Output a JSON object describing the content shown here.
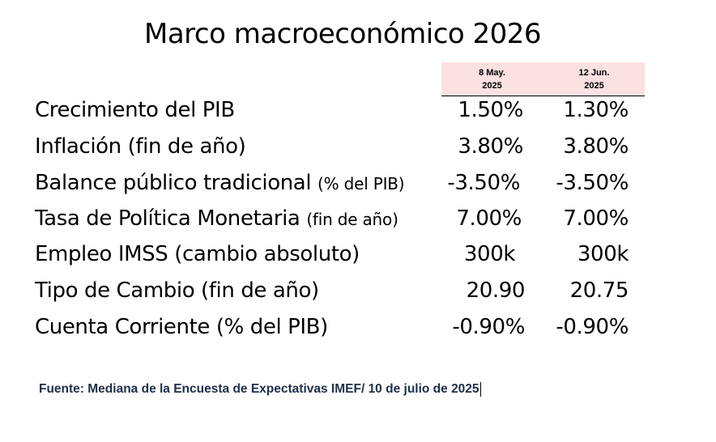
{
  "title": "Marco macroeconómico 2026",
  "columns": [
    {
      "line1": "8 May.",
      "line2": "2025"
    },
    {
      "line1": "12 Jun.",
      "line2": "2025"
    }
  ],
  "rows": [
    {
      "label": "Crecimiento del PIB",
      "note": "",
      "v1": "1.50%",
      "v2": "1.30%"
    },
    {
      "label": "Inflación (fin de año)",
      "note": "",
      "v1": "3.80%",
      "v2": "3.80%"
    },
    {
      "label": "Balance público tradicional",
      "note": "(% del PIB)",
      "v1": "-3.50%",
      "v2": "-3.50%"
    },
    {
      "label": "Tasa de Política Monetaria",
      "note": "(fin de año)",
      "v1": "7.00%",
      "v2": "7.00%"
    },
    {
      "label": "Empleo IMSS (cambio absoluto)",
      "note": "",
      "v1": "300k",
      "v2": "300k"
    },
    {
      "label": "Tipo de Cambio (fin de año)",
      "note": "",
      "v1": "20.90",
      "v2": "20.75"
    },
    {
      "label": "Cuenta Corriente (% del PIB)",
      "note": "",
      "v1": "-0.90%",
      "v2": "-0.90%"
    }
  ],
  "source": "Fuente: Mediana de la Encuesta de Expectativas IMEF/ 10 de julio de 2025"
}
